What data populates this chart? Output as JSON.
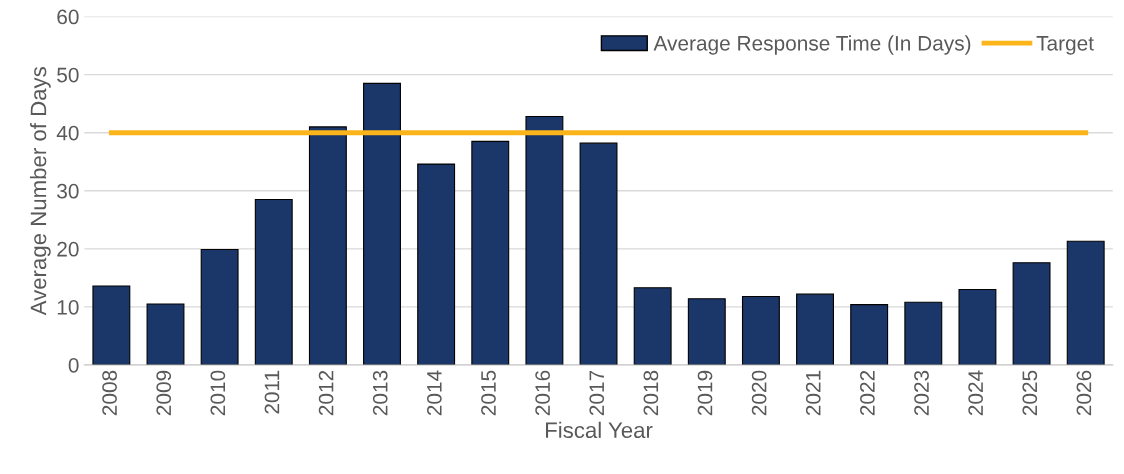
{
  "chart_data": {
    "type": "bar",
    "xlabel": "Fiscal Year",
    "ylabel": "Average Number of Days",
    "categories": [
      "2008",
      "2009",
      "2010",
      "2011",
      "2012",
      "2013",
      "2014",
      "2015",
      "2016",
      "2017",
      "2018",
      "2019",
      "2020",
      "2021",
      "2022",
      "2023",
      "2024",
      "2025",
      "2026"
    ],
    "series": [
      {
        "name": "Average Response Time (In Days)",
        "color": "#1b3668",
        "values": [
          13.6,
          10.5,
          19.9,
          28.5,
          41.0,
          48.5,
          34.6,
          38.5,
          42.8,
          38.2,
          13.3,
          11.4,
          11.8,
          12.2,
          10.4,
          10.8,
          13.0,
          17.6,
          21.3
        ]
      },
      {
        "name": "Target",
        "type": "line",
        "color": "#fbb41a",
        "values": [
          40,
          40,
          40,
          40,
          40,
          40,
          40,
          40,
          40,
          40,
          40,
          40,
          40,
          40,
          40,
          40,
          40,
          40,
          40
        ]
      }
    ],
    "ylim": [
      0,
      60
    ],
    "yticks": [
      0,
      10,
      20,
      30,
      40,
      50,
      60
    ],
    "grid": "y",
    "legend": "top right"
  }
}
